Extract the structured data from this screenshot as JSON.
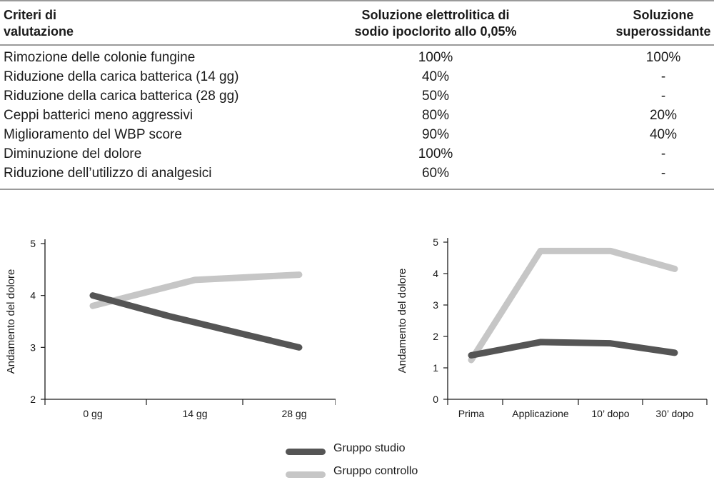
{
  "table": {
    "headers": {
      "col1": [
        "Criteri di",
        "valutazione"
      ],
      "col2": [
        "Soluzione elettrolitica di",
        "sodio ipoclorito allo 0,05%"
      ],
      "col3": [
        "Soluzione",
        "superossidante"
      ]
    },
    "rows": [
      {
        "label": "Rimozione delle colonie fungine",
        "sodio": "100%",
        "super": "100%"
      },
      {
        "label": "Riduzione della carica batterica (14 gg)",
        "sodio": "40%",
        "super": "-"
      },
      {
        "label": "Riduzione della carica batterica (28 gg)",
        "sodio": "50%",
        "super": "-"
      },
      {
        "label": "Ceppi batterici meno aggressivi",
        "sodio": "80%",
        "super": "20%"
      },
      {
        "label": "Miglioramento del WBP score",
        "sodio": "90%",
        "super": "40%"
      },
      {
        "label": "Diminuzione del dolore",
        "sodio": "100%",
        "super": "-"
      },
      {
        "label": "Riduzione dell’utilizzo di analgesici",
        "sodio": "60%",
        "super": "-"
      }
    ]
  },
  "colors": {
    "studio": "#555555",
    "controllo": "#c6c6c6",
    "axis": "#1a1a1a",
    "rule": "#9a9a9a"
  },
  "legend": {
    "studio": "Gruppo studio",
    "controllo": "Gruppo controllo"
  },
  "chart_data": [
    {
      "type": "line",
      "title": "",
      "xlabel": "",
      "ylabel": "Andamento del dolore",
      "categories": [
        "0 gg",
        "14 gg",
        "28 gg"
      ],
      "yticks": [
        "2",
        "3",
        "4",
        "5"
      ],
      "ylim": [
        2,
        5
      ],
      "series": [
        {
          "name": "Gruppo studio",
          "values": [
            4.0,
            3.6,
            3.25,
            3.0
          ],
          "x": [
            0,
            0.75,
            1.5,
            2.5
          ]
        },
        {
          "name": "Gruppo controllo",
          "values": [
            3.8,
            4.3,
            4.4
          ],
          "x": [
            0,
            1.0,
            2.5
          ]
        }
      ],
      "grid": false,
      "legend_position": "bottom"
    },
    {
      "type": "line",
      "title": "",
      "xlabel": "",
      "ylabel": "Andamento del dolore",
      "categories": [
        "Prima",
        "Applicazione",
        "10’ dopo",
        "30’ dopo"
      ],
      "yticks": [
        "0",
        "1",
        "2",
        "3",
        "4",
        "5"
      ],
      "ylim": [
        0,
        5
      ],
      "series": [
        {
          "name": "Gruppo studio",
          "values": [
            1.4,
            1.82,
            1.78,
            1.48
          ]
        },
        {
          "name": "Gruppo controllo",
          "values": [
            1.25,
            4.72,
            4.72,
            4.15
          ]
        }
      ],
      "grid": false,
      "legend_position": "bottom"
    }
  ]
}
